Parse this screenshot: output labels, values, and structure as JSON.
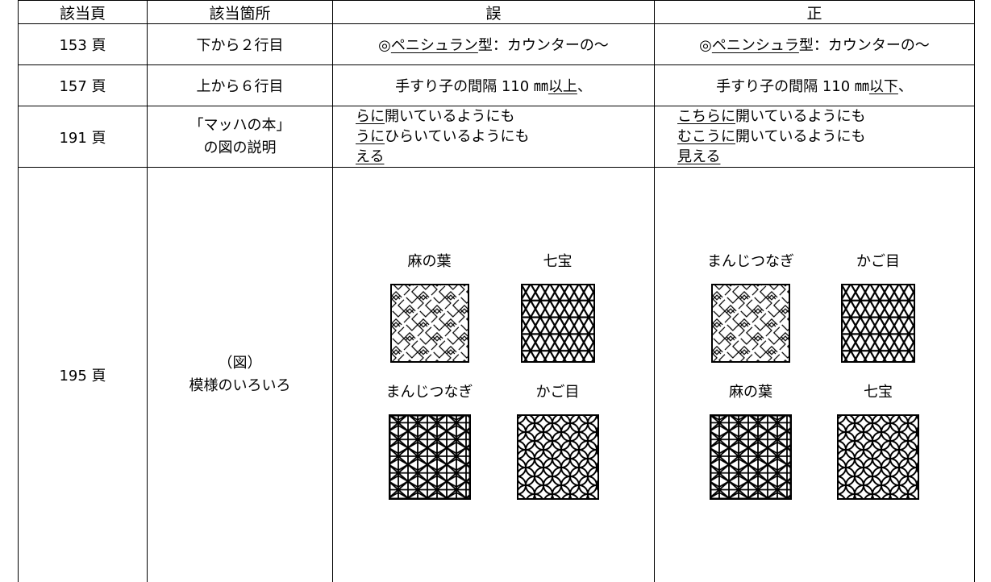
{
  "table": {
    "header": [
      "該当頁",
      "該当箇所",
      "誤",
      "正"
    ],
    "rows": [
      {
        "page": "153 頁",
        "location": [
          "下から２行目"
        ],
        "wrong": [
          [
            "◎",
            "ペニシュラン",
            "型：カウンターの～"
          ]
        ],
        "correct": [
          [
            "◎",
            "ペニンシュラ",
            "型：カウンターの～"
          ]
        ]
      },
      {
        "page": "157 頁",
        "location": [
          "上から６行目"
        ],
        "wrong": [
          [
            "手すり子の間隔 110 ㎜",
            "以上",
            "、"
          ]
        ],
        "correct": [
          [
            "手すり子の間隔 110 ㎜",
            "以下",
            "、"
          ]
        ]
      },
      {
        "page": "191 頁",
        "location": [
          "「マッハの本」",
          "の図の説明"
        ],
        "wrong": [
          [
            "らに",
            "開いているようにも"
          ],
          [
            "うに",
            "ひらいているようにも"
          ],
          [
            "える"
          ]
        ],
        "correct": [
          [
            "こちらに",
            "開いているようにも"
          ],
          [
            "むこうに",
            "開いているようにも"
          ],
          [
            "見える"
          ]
        ]
      },
      {
        "page": "195 頁",
        "location": [
          "（図）",
          "模様のいろいろ"
        ],
        "wrong_figures": [
          "麻の葉",
          "七宝",
          "まんじつなぎ",
          "かご目"
        ],
        "correct_figures": [
          "まんじつなぎ",
          "かご目",
          "麻の葉",
          "七宝"
        ]
      }
    ]
  }
}
